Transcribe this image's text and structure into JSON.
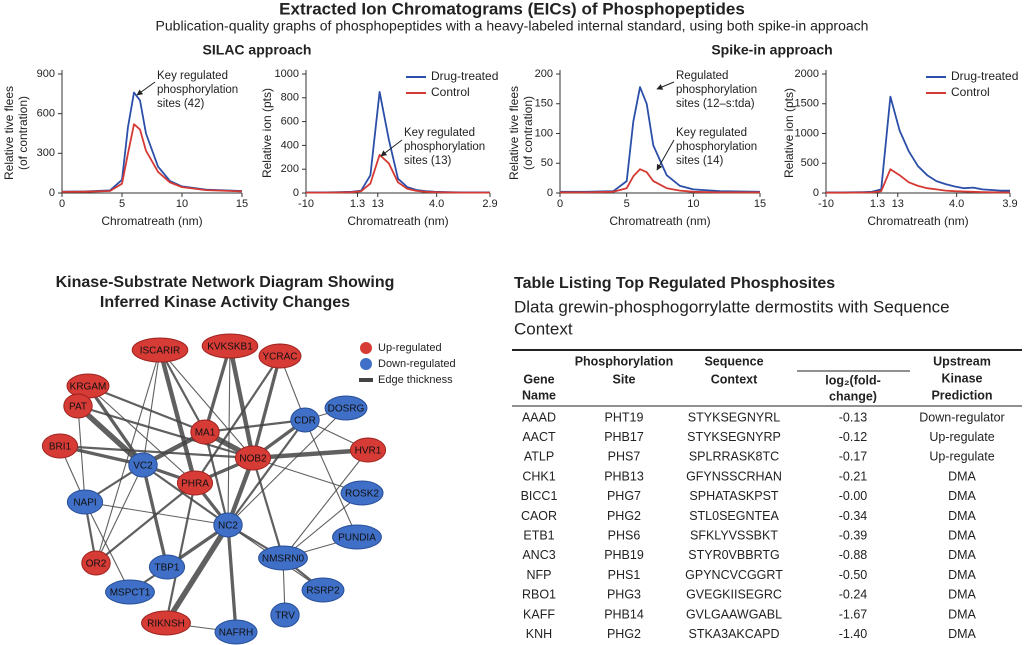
{
  "header": {
    "title": "Extracted Ion Chromatograms (EICs) of Phosphopeptides",
    "subtitle": "Publication-quality graphs of phosphopeptides with a heavy-labeled internal standard, using both spike-in approach",
    "panel_titles": [
      "SILAC approach",
      "Spike-in approach"
    ]
  },
  "chart_data": [
    {
      "type": "line",
      "xlabel": "Chromatreath (nm)",
      "ylabel": [
        "Relative tive flees",
        "(of contration)"
      ],
      "xlim": [
        0,
        15
      ],
      "xticks": [
        0,
        5,
        10,
        15
      ],
      "ylim": [
        0,
        900
      ],
      "yticks": [
        0,
        300,
        600,
        900
      ],
      "x": [
        0,
        2,
        4,
        5,
        5.5,
        6,
        6.5,
        7,
        8,
        9,
        10,
        12,
        15
      ],
      "series": [
        {
          "name": "Drug-treated",
          "color": "#2b4fa8",
          "values": [
            10,
            12,
            20,
            100,
            500,
            760,
            700,
            450,
            200,
            90,
            50,
            25,
            15
          ]
        },
        {
          "name": "Control",
          "color": "#d43a33",
          "values": [
            8,
            10,
            15,
            70,
            300,
            520,
            480,
            320,
            160,
            80,
            45,
            22,
            12
          ]
        }
      ],
      "annotations": [
        {
          "lines": [
            "Key regulated",
            "phosphorylation",
            "sites (42)"
          ]
        }
      ]
    },
    {
      "type": "line",
      "xlabel": "Chromatreath (nm)",
      "ylabel": [
        "Relative ion (pts)"
      ],
      "xtick_labels": [
        "-10",
        "1.3",
        "13",
        "4.0",
        "2.9"
      ],
      "ylim": [
        0,
        1000
      ],
      "yticks": [
        0,
        200,
        400,
        600,
        800,
        1000
      ],
      "legend": "top-right",
      "series": [
        {
          "name": "Drug-treated",
          "color": "#2b4fa8",
          "values": [
            5,
            5,
            5,
            6,
            8,
            10,
            20,
            150,
            850,
            450,
            120,
            50,
            25,
            15,
            10,
            8,
            6,
            5,
            5,
            5,
            5
          ]
        },
        {
          "name": "Control",
          "color": "#d43a33",
          "values": [
            3,
            3,
            3,
            4,
            5,
            7,
            15,
            80,
            320,
            250,
            90,
            35,
            18,
            10,
            7,
            5,
            4,
            3,
            3,
            3,
            3
          ]
        }
      ],
      "annotations": [
        {
          "lines": [
            "Key regulated",
            "phosphorylation",
            "sites (13)"
          ]
        }
      ]
    },
    {
      "type": "line",
      "xlabel": "Chromatreath (nm)",
      "ylabel": [
        "Relative tive flees",
        "(of contration)"
      ],
      "xlim": [
        0,
        15
      ],
      "xticks": [
        0,
        5,
        10,
        15
      ],
      "ylim": [
        0,
        200
      ],
      "yticks": [
        0,
        50,
        100,
        150,
        200
      ],
      "x": [
        0,
        2,
        4,
        5,
        5.5,
        6,
        6.5,
        7,
        8,
        9,
        10,
        12,
        15
      ],
      "series": [
        {
          "name": "Drug-treated",
          "color": "#2b4fa8",
          "values": [
            2,
            2,
            3,
            20,
            120,
            178,
            150,
            80,
            30,
            12,
            6,
            3,
            2
          ]
        },
        {
          "name": "Control",
          "color": "#d43a33",
          "values": [
            1,
            1,
            2,
            8,
            28,
            40,
            35,
            20,
            8,
            4,
            2,
            1,
            1
          ]
        }
      ],
      "annotations": [
        {
          "lines": [
            "Regulated",
            "phosphorylation",
            "sites (12–s:tda)"
          ]
        },
        {
          "lines": [
            "Key regulated",
            "phosphorylation",
            "sites (14)"
          ]
        }
      ]
    },
    {
      "type": "line",
      "xlabel": "Chromatreath (nm)",
      "ylabel": [
        "Relative ion (pts)"
      ],
      "xtick_labels": [
        "-10",
        "1.3",
        "13",
        "4.0",
        "3.9"
      ],
      "ylim": [
        0,
        2000
      ],
      "yticks": [
        0,
        500,
        1000,
        1500,
        2000
      ],
      "legend": "top-right",
      "series": [
        {
          "name": "Drug-treated",
          "color": "#2b4fa8",
          "values": [
            10,
            10,
            10,
            12,
            15,
            20,
            60,
            1620,
            1050,
            700,
            450,
            300,
            200,
            150,
            110,
            80,
            90,
            60,
            50,
            40,
            40
          ]
        },
        {
          "name": "Control",
          "color": "#d43a33",
          "values": [
            5,
            5,
            5,
            6,
            8,
            10,
            30,
            400,
            300,
            180,
            120,
            80,
            60,
            40,
            30,
            25,
            20,
            15,
            12,
            10,
            10
          ]
        }
      ],
      "annotations": []
    }
  ],
  "network": {
    "title": [
      "Kinase-Substrate Network Diagram Showing",
      "Inferred Kinase Activity Changes"
    ],
    "colors": {
      "up": "#d63b36",
      "down": "#3f6fc6"
    },
    "legend": {
      "up": "Up-regulated",
      "down": "Down-regulated",
      "edge": "Edge thickness"
    },
    "nodes": [
      {
        "label": "ISCARIR",
        "group": "up"
      },
      {
        "label": "KVKSKB1",
        "group": "up"
      },
      {
        "label": "YCRAC",
        "group": "up"
      },
      {
        "label": "KRGAM",
        "group": "up"
      },
      {
        "label": "PAT",
        "group": "up"
      },
      {
        "label": "MA1",
        "group": "up"
      },
      {
        "label": "CDR",
        "group": "down"
      },
      {
        "label": "DOSRG",
        "group": "down"
      },
      {
        "label": "BRI1",
        "group": "up"
      },
      {
        "label": "VC2",
        "group": "down"
      },
      {
        "label": "NOB2",
        "group": "up"
      },
      {
        "label": "HVR1",
        "group": "up"
      },
      {
        "label": "PHRA",
        "group": "up"
      },
      {
        "label": "NAPI",
        "group": "down"
      },
      {
        "label": "ROSK2",
        "group": "down"
      },
      {
        "label": "NC2",
        "group": "down"
      },
      {
        "label": "PUNDIA",
        "group": "down"
      },
      {
        "label": "OR2",
        "group": "up"
      },
      {
        "label": "NMSRN0",
        "group": "down"
      },
      {
        "label": "TBP1",
        "group": "down"
      },
      {
        "label": "MSPCT1",
        "group": "down"
      },
      {
        "label": "RSRP2",
        "group": "down"
      },
      {
        "label": "RIKNSH",
        "group": "up"
      },
      {
        "label": "TRV",
        "group": "down"
      },
      {
        "label": "NAFRH",
        "group": "down"
      }
    ],
    "edges": [
      [
        0,
        5,
        2
      ],
      [
        0,
        10,
        1
      ],
      [
        0,
        12,
        4
      ],
      [
        0,
        9,
        1
      ],
      [
        1,
        5,
        3
      ],
      [
        1,
        10,
        4
      ],
      [
        1,
        15,
        1
      ],
      [
        2,
        10,
        3
      ],
      [
        2,
        6,
        1
      ],
      [
        2,
        12,
        2
      ],
      [
        3,
        5,
        2
      ],
      [
        3,
        9,
        3
      ],
      [
        3,
        12,
        1
      ],
      [
        4,
        9,
        5
      ],
      [
        4,
        10,
        2
      ],
      [
        4,
        13,
        1
      ],
      [
        5,
        10,
        5
      ],
      [
        5,
        9,
        4
      ],
      [
        5,
        6,
        2
      ],
      [
        5,
        15,
        2
      ],
      [
        6,
        10,
        3
      ],
      [
        6,
        7,
        1
      ],
      [
        6,
        11,
        1
      ],
      [
        6,
        15,
        2
      ],
      [
        6,
        16,
        1
      ],
      [
        8,
        9,
        3
      ],
      [
        8,
        10,
        2
      ],
      [
        8,
        13,
        1
      ],
      [
        9,
        12,
        3
      ],
      [
        9,
        13,
        2
      ],
      [
        9,
        15,
        2
      ],
      [
        9,
        17,
        1
      ],
      [
        9,
        19,
        3
      ],
      [
        10,
        11,
        4
      ],
      [
        10,
        12,
        3
      ],
      [
        10,
        15,
        4
      ],
      [
        10,
        18,
        2
      ],
      [
        10,
        14,
        1
      ],
      [
        12,
        15,
        3
      ],
      [
        12,
        17,
        2
      ],
      [
        12,
        22,
        2
      ],
      [
        13,
        15,
        1
      ],
      [
        13,
        17,
        2
      ],
      [
        13,
        20,
        1
      ],
      [
        15,
        18,
        2
      ],
      [
        15,
        19,
        3
      ],
      [
        15,
        21,
        1
      ],
      [
        15,
        24,
        3
      ],
      [
        15,
        22,
        5
      ],
      [
        18,
        23,
        1
      ],
      [
        18,
        21,
        2
      ],
      [
        19,
        20,
        2
      ],
      [
        14,
        18,
        1
      ],
      [
        16,
        18,
        1
      ],
      [
        11,
        18,
        1
      ],
      [
        7,
        15,
        1
      ],
      [
        22,
        24,
        1
      ],
      [
        0,
        17,
        1
      ]
    ]
  },
  "table": {
    "title": "Table Listing Top Regulated Phosphosites",
    "subtitle": [
      "Dlata grewin-phosphogorrylatte dermostits with Sequence",
      "Context"
    ],
    "columns": [
      [
        "Gene",
        "Name"
      ],
      [
        "Phosphorylation",
        "Site"
      ],
      [
        "Sequence",
        "Context"
      ],
      [
        "log₂(fold-",
        "change)"
      ],
      [
        "Upstream",
        "Kinase",
        "Prediction"
      ]
    ],
    "rows": [
      [
        "AAAD",
        "PHT19",
        "STYKSEGNYRL",
        "-0.13",
        "Down-regulator"
      ],
      [
        "AACT",
        "PHB17",
        "STYKSEGNYRP",
        "-0.12",
        "Up-regulate"
      ],
      [
        "ATLP",
        "PHS7",
        "SPLRRASK8TC",
        "-0.17",
        "Up-regulate"
      ],
      [
        "CHK1",
        "PHB13",
        "GFYNSSCRHAN",
        "-0.21",
        "DMA"
      ],
      [
        "BICC1",
        "PHG7",
        "SPHATASKPST",
        "-0.00",
        "DMA"
      ],
      [
        "CAOR",
        "PHG2",
        "STL0SEGNTEA",
        "-0.34",
        "DMA"
      ],
      [
        "ETB1",
        "PHS6",
        "SFKLYVSSBKT",
        "-0.39",
        "DMA"
      ],
      [
        "ANC3",
        "PHB19",
        "STYR0VBBRTG",
        "-0.88",
        "DMA"
      ],
      [
        "NFP",
        "PHS1",
        "GPYNCVCGGRT",
        "-0.50",
        "DMA"
      ],
      [
        "RBO1",
        "PHG3",
        "GVEGKIISEGRC",
        "-0.24",
        "DMA"
      ],
      [
        "KAFF",
        "PHB14",
        "GVLGAAWGABL",
        "-1.67",
        "DMA"
      ],
      [
        "KNH",
        "PHG2",
        "STKA3AKCAPD",
        "-1.40",
        "DMA"
      ]
    ]
  }
}
